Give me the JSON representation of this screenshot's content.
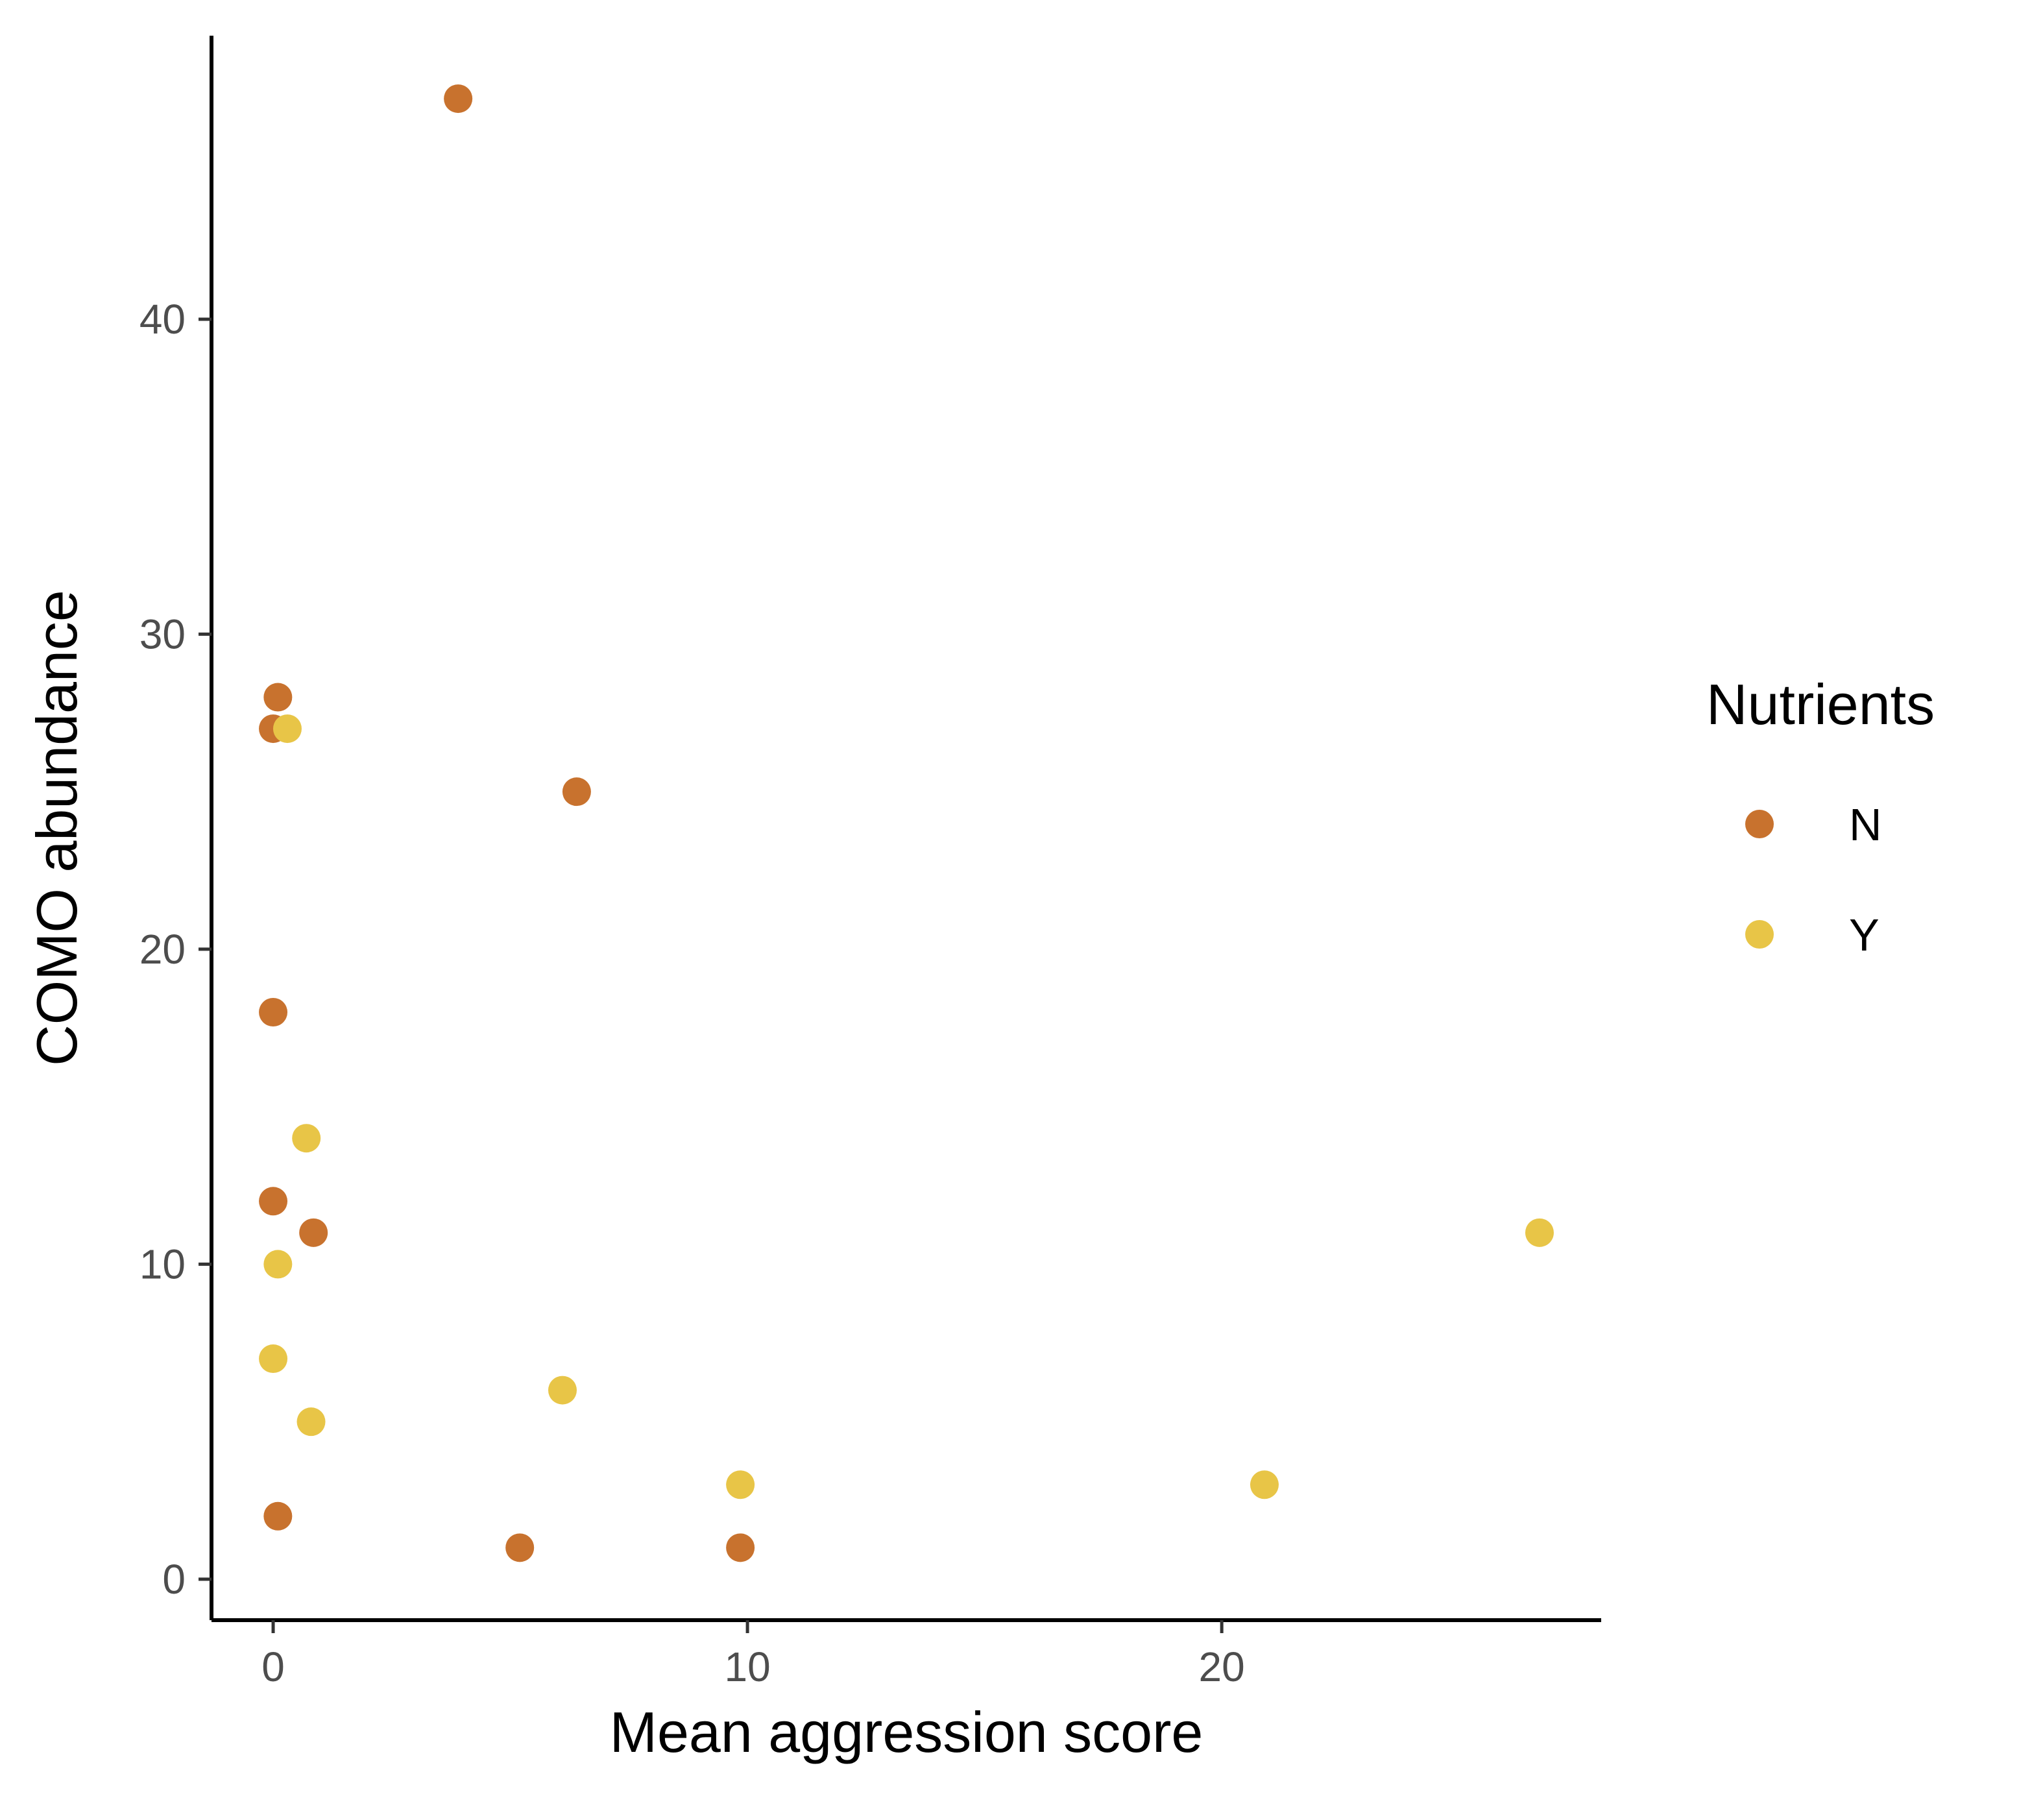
{
  "chart_data": {
    "type": "scatter",
    "title": "",
    "xlabel": "Mean aggression score",
    "ylabel": "COMO abundance",
    "xlim": [
      -1.3,
      28.0
    ],
    "ylim": [
      -1.3,
      49.0
    ],
    "xticks": [
      0,
      10,
      20
    ],
    "yticks": [
      0,
      10,
      20,
      30,
      40
    ],
    "grid": false,
    "legend": {
      "title": "Nutrients",
      "placement": "right"
    },
    "series": [
      {
        "name": "N",
        "color": "#C8722E",
        "points": [
          {
            "x": 3.9,
            "y": 47
          },
          {
            "x": 0.1,
            "y": 28
          },
          {
            "x": 0.0,
            "y": 27
          },
          {
            "x": 6.4,
            "y": 25
          },
          {
            "x": 0.0,
            "y": 18
          },
          {
            "x": 0.0,
            "y": 12
          },
          {
            "x": 0.85,
            "y": 11
          },
          {
            "x": 0.1,
            "y": 2
          },
          {
            "x": 5.2,
            "y": 1
          },
          {
            "x": 9.85,
            "y": 1
          }
        ]
      },
      {
        "name": "Y",
        "color": "#E8C547",
        "points": [
          {
            "x": 0.3,
            "y": 27
          },
          {
            "x": 0.7,
            "y": 14
          },
          {
            "x": 0.1,
            "y": 10
          },
          {
            "x": 0.0,
            "y": 7
          },
          {
            "x": 0.8,
            "y": 5
          },
          {
            "x": 6.1,
            "y": 6
          },
          {
            "x": 9.85,
            "y": 3
          },
          {
            "x": 20.9,
            "y": 3
          },
          {
            "x": 26.7,
            "y": 11
          }
        ]
      }
    ]
  }
}
